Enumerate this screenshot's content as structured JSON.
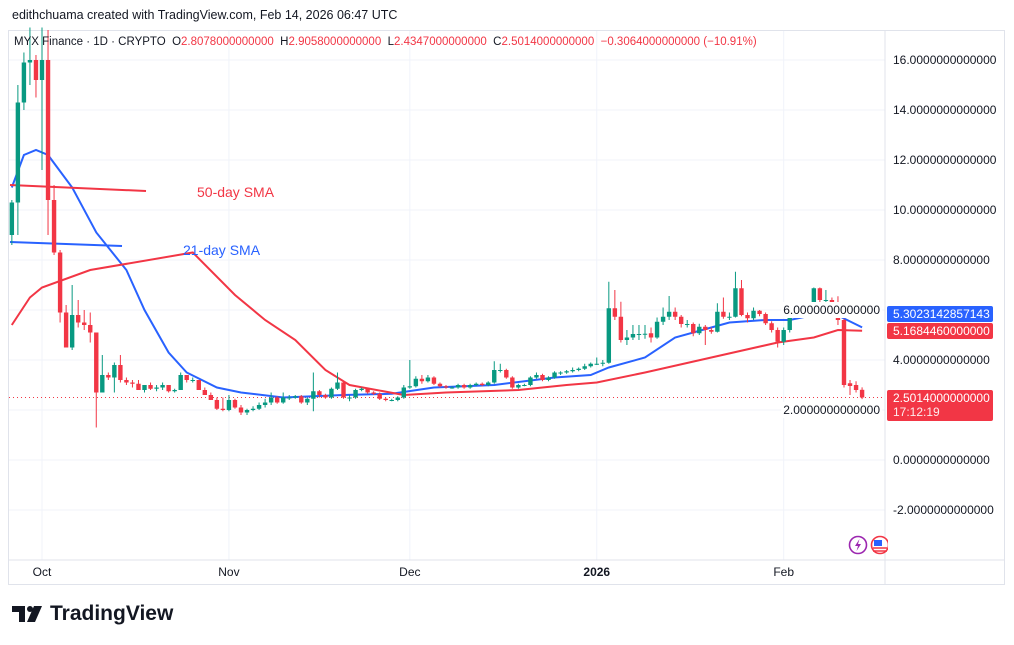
{
  "credit": "edithchuama created with TradingView.com, Feb 14, 2026 06:47 UTC",
  "legend": {
    "symbol": "MYX Finance · 1D · CRYPTO",
    "o_label": "O",
    "o": "2.8078000000000",
    "h_label": "H",
    "h": "2.9058000000000",
    "l_label": "L",
    "l": "2.4347000000000",
    "c_label": "C",
    "c": "2.5014000000000",
    "change": "−0.3064000000000 (−10.91%)"
  },
  "annotations": {
    "sma50": "50-day SMA",
    "sma21": "21-day SMA"
  },
  "badges": {
    "sma21_value": "5.3023142857143",
    "sma50_value": "5.1684460000000",
    "last_price": "2.5014000000000",
    "countdown": "17:12:19"
  },
  "logo_text": "TradingView",
  "colors": {
    "up": "#089981",
    "down": "#f23645",
    "sma21": "#2962ff",
    "sma50": "#f23645",
    "grid": "#f0f3fa"
  },
  "chart_data": {
    "type": "candlestick",
    "title": "MYX Finance · 1D · CRYPTO",
    "ylim": [
      -3,
      17
    ],
    "y_ticks": [
      "16.0000000000000",
      "14.0000000000000",
      "12.0000000000000",
      "10.0000000000000",
      "8.0000000000000",
      "6.0000000000000",
      "4.0000000000000",
      "2.0000000000000",
      "0.0000000000000",
      "-2.0000000000000"
    ],
    "y_tick_values": [
      16,
      14,
      12,
      10,
      8,
      6,
      4,
      2,
      0,
      -2
    ],
    "x_ticks": [
      {
        "label": "Oct",
        "date": "2025-10-01"
      },
      {
        "label": "Nov",
        "date": "2025-11-01"
      },
      {
        "label": "Dec",
        "date": "2025-12-01"
      },
      {
        "label": "2026",
        "date": "2026-01-01"
      },
      {
        "label": "Feb",
        "date": "2026-02-01"
      }
    ],
    "grid": true,
    "last_price": 2.5014,
    "candles_columns": [
      "date",
      "open",
      "high",
      "low",
      "close"
    ],
    "candles": [
      [
        "2025-09-26",
        9.0,
        10.4,
        8.6,
        10.3
      ],
      [
        "2025-09-27",
        10.3,
        15.0,
        9.0,
        14.3
      ],
      [
        "2025-09-28",
        14.3,
        16.3,
        14.0,
        15.9
      ],
      [
        "2025-09-29",
        15.9,
        17.3,
        15.0,
        16.0
      ],
      [
        "2025-09-30",
        16.0,
        16.2,
        14.5,
        15.2
      ],
      [
        "2025-10-01",
        15.2,
        17.3,
        11.6,
        16.0
      ],
      [
        "2025-10-02",
        16.0,
        17.2,
        9.0,
        10.4
      ],
      [
        "2025-10-03",
        10.4,
        11.0,
        8.2,
        8.3
      ],
      [
        "2025-10-04",
        8.3,
        8.4,
        5.5,
        5.9
      ],
      [
        "2025-10-05",
        5.9,
        6.2,
        4.5,
        4.5
      ],
      [
        "2025-10-06",
        4.5,
        7.0,
        4.4,
        5.8
      ],
      [
        "2025-10-07",
        5.8,
        6.4,
        5.3,
        5.5
      ],
      [
        "2025-10-08",
        5.5,
        6.0,
        5.2,
        5.4
      ],
      [
        "2025-10-09",
        5.4,
        5.9,
        4.7,
        5.1
      ],
      [
        "2025-10-10",
        5.1,
        5.1,
        1.3,
        2.7
      ],
      [
        "2025-10-11",
        2.7,
        4.2,
        2.7,
        3.4
      ],
      [
        "2025-10-12",
        3.4,
        3.5,
        3.2,
        3.3
      ],
      [
        "2025-10-13",
        3.3,
        3.9,
        2.7,
        3.8
      ],
      [
        "2025-10-14",
        3.8,
        4.2,
        3.1,
        3.2
      ],
      [
        "2025-10-15",
        3.2,
        3.3,
        3.0,
        3.1
      ],
      [
        "2025-10-16",
        3.1,
        3.2,
        2.9,
        3.05
      ],
      [
        "2025-10-17",
        3.05,
        3.2,
        2.8,
        2.8
      ],
      [
        "2025-10-18",
        2.8,
        3.0,
        2.7,
        3.0
      ],
      [
        "2025-10-19",
        3.0,
        3.1,
        2.8,
        2.85
      ],
      [
        "2025-10-20",
        2.85,
        3.0,
        2.75,
        2.9
      ],
      [
        "2025-10-21",
        2.9,
        3.1,
        2.8,
        3.0
      ],
      [
        "2025-10-22",
        3.0,
        3.0,
        2.7,
        2.75
      ],
      [
        "2025-10-23",
        2.75,
        2.85,
        2.7,
        2.8
      ],
      [
        "2025-10-24",
        2.8,
        3.5,
        2.8,
        3.4
      ],
      [
        "2025-10-25",
        3.4,
        3.4,
        3.1,
        3.2
      ],
      [
        "2025-10-26",
        3.2,
        3.3,
        3.1,
        3.2
      ],
      [
        "2025-10-27",
        3.2,
        3.2,
        2.8,
        2.8
      ],
      [
        "2025-10-28",
        2.8,
        2.9,
        2.6,
        2.6
      ],
      [
        "2025-10-29",
        2.6,
        2.7,
        2.4,
        2.4
      ],
      [
        "2025-10-30",
        2.4,
        2.5,
        2.0,
        2.05
      ],
      [
        "2025-10-31",
        2.05,
        2.5,
        1.95,
        2.0
      ],
      [
        "2025-11-01",
        2.0,
        2.6,
        1.95,
        2.4
      ],
      [
        "2025-11-02",
        2.4,
        2.45,
        2.05,
        2.1
      ],
      [
        "2025-11-03",
        2.1,
        2.2,
        1.8,
        1.9
      ],
      [
        "2025-11-04",
        1.9,
        2.05,
        1.8,
        2.0
      ],
      [
        "2025-11-05",
        2.0,
        2.15,
        1.95,
        2.05
      ],
      [
        "2025-11-06",
        2.05,
        2.3,
        2.0,
        2.2
      ],
      [
        "2025-11-07",
        2.2,
        2.45,
        2.1,
        2.3
      ],
      [
        "2025-11-08",
        2.3,
        2.7,
        2.2,
        2.5
      ],
      [
        "2025-11-09",
        2.5,
        2.55,
        2.25,
        2.3
      ],
      [
        "2025-11-10",
        2.3,
        2.7,
        2.25,
        2.5
      ],
      [
        "2025-11-11",
        2.5,
        2.6,
        2.4,
        2.5
      ],
      [
        "2025-11-12",
        2.5,
        2.6,
        2.45,
        2.55
      ],
      [
        "2025-11-13",
        2.55,
        2.6,
        2.25,
        2.3
      ],
      [
        "2025-11-14",
        2.3,
        2.5,
        2.2,
        2.45
      ],
      [
        "2025-11-15",
        2.45,
        3.5,
        1.95,
        2.75
      ],
      [
        "2025-11-16",
        2.75,
        2.8,
        2.5,
        2.6
      ],
      [
        "2025-11-17",
        2.6,
        2.65,
        2.45,
        2.5
      ],
      [
        "2025-11-18",
        2.5,
        2.9,
        2.45,
        2.85
      ],
      [
        "2025-11-19",
        2.85,
        3.5,
        2.8,
        3.1
      ],
      [
        "2025-11-20",
        3.1,
        3.15,
        2.45,
        2.5
      ],
      [
        "2025-11-21",
        2.5,
        2.6,
        2.35,
        2.5
      ],
      [
        "2025-11-22",
        2.5,
        2.85,
        2.45,
        2.8
      ],
      [
        "2025-11-23",
        2.8,
        2.9,
        2.75,
        2.85
      ],
      [
        "2025-11-24",
        2.85,
        2.9,
        2.65,
        2.7
      ],
      [
        "2025-11-25",
        2.7,
        2.75,
        2.6,
        2.65
      ],
      [
        "2025-11-26",
        2.65,
        2.7,
        2.4,
        2.45
      ],
      [
        "2025-11-27",
        2.45,
        2.5,
        2.35,
        2.4
      ],
      [
        "2025-11-28",
        2.4,
        2.45,
        2.35,
        2.4
      ],
      [
        "2025-11-29",
        2.4,
        2.55,
        2.35,
        2.5
      ],
      [
        "2025-11-30",
        2.5,
        3.0,
        2.45,
        2.9
      ],
      [
        "2025-12-01",
        2.9,
        4.0,
        2.85,
        2.95
      ],
      [
        "2025-12-02",
        2.95,
        3.35,
        2.9,
        3.25
      ],
      [
        "2025-12-03",
        3.25,
        3.4,
        3.05,
        3.15
      ],
      [
        "2025-12-04",
        3.15,
        3.4,
        3.1,
        3.3
      ],
      [
        "2025-12-05",
        3.3,
        3.35,
        3.0,
        3.05
      ],
      [
        "2025-12-06",
        3.05,
        3.1,
        2.9,
        2.95
      ],
      [
        "2025-12-07",
        2.95,
        3.0,
        2.85,
        2.9
      ],
      [
        "2025-12-08",
        2.9,
        2.95,
        2.85,
        2.9
      ],
      [
        "2025-12-09",
        2.9,
        3.05,
        2.85,
        3.0
      ],
      [
        "2025-12-10",
        3.0,
        3.05,
        2.85,
        2.9
      ],
      [
        "2025-12-11",
        2.9,
        3.05,
        2.85,
        3.0
      ],
      [
        "2025-12-12",
        3.0,
        3.1,
        2.95,
        3.05
      ],
      [
        "2025-12-13",
        3.05,
        3.1,
        2.95,
        3.0
      ],
      [
        "2025-12-14",
        3.0,
        3.15,
        2.95,
        3.1
      ],
      [
        "2025-12-15",
        3.1,
        3.95,
        3.05,
        3.6
      ],
      [
        "2025-12-16",
        3.6,
        3.85,
        3.5,
        3.6
      ],
      [
        "2025-12-17",
        3.6,
        3.65,
        3.25,
        3.3
      ],
      [
        "2025-12-18",
        3.3,
        3.35,
        2.85,
        2.9
      ],
      [
        "2025-12-19",
        2.9,
        3.05,
        2.85,
        3.0
      ],
      [
        "2025-12-20",
        3.0,
        3.05,
        2.95,
        3.0
      ],
      [
        "2025-12-21",
        3.0,
        3.35,
        2.95,
        3.3
      ],
      [
        "2025-12-22",
        3.3,
        3.5,
        3.25,
        3.4
      ],
      [
        "2025-12-23",
        3.4,
        3.45,
        3.15,
        3.2
      ],
      [
        "2025-12-24",
        3.2,
        3.35,
        3.15,
        3.3
      ],
      [
        "2025-12-25",
        3.3,
        3.55,
        3.25,
        3.5
      ],
      [
        "2025-12-26",
        3.5,
        3.55,
        3.4,
        3.5
      ],
      [
        "2025-12-27",
        3.5,
        3.6,
        3.45,
        3.55
      ],
      [
        "2025-12-28",
        3.55,
        3.7,
        3.5,
        3.6
      ],
      [
        "2025-12-29",
        3.6,
        3.7,
        3.55,
        3.65
      ],
      [
        "2025-12-30",
        3.65,
        3.85,
        3.6,
        3.75
      ],
      [
        "2025-12-31",
        3.75,
        3.9,
        3.7,
        3.85
      ],
      [
        "2026-01-01",
        3.85,
        4.1,
        3.8,
        3.85
      ],
      [
        "2026-01-02",
        3.85,
        4.0,
        3.75,
        3.89
      ],
      [
        "2026-01-03",
        3.89,
        7.13,
        3.85,
        6.07
      ],
      [
        "2026-01-04",
        6.07,
        6.8,
        5.6,
        5.73
      ],
      [
        "2026-01-05",
        5.73,
        6.33,
        4.7,
        4.8
      ],
      [
        "2026-01-06",
        4.8,
        5.2,
        4.6,
        4.9
      ],
      [
        "2026-01-07",
        4.9,
        5.4,
        4.8,
        5.04
      ],
      [
        "2026-01-08",
        5.04,
        5.4,
        4.8,
        5.04
      ],
      [
        "2026-01-09",
        5.04,
        5.4,
        4.85,
        5.05
      ],
      [
        "2026-01-10",
        5.07,
        5.3,
        4.7,
        4.9
      ],
      [
        "2026-01-11",
        4.9,
        5.7,
        4.85,
        5.53
      ],
      [
        "2026-01-12",
        5.53,
        6.1,
        5.4,
        5.73
      ],
      [
        "2026-01-13",
        5.73,
        6.56,
        5.6,
        5.93
      ],
      [
        "2026-01-14",
        5.93,
        6.1,
        5.6,
        5.73
      ],
      [
        "2026-01-15",
        5.73,
        5.8,
        5.3,
        5.44
      ],
      [
        "2026-01-16",
        5.44,
        5.6,
        5.3,
        5.44
      ],
      [
        "2026-01-17",
        5.44,
        5.5,
        4.95,
        5.07
      ],
      [
        "2026-01-18",
        5.07,
        5.45,
        5.0,
        5.33
      ],
      [
        "2026-01-19",
        5.33,
        5.4,
        4.6,
        5.2
      ],
      [
        "2026-01-20",
        5.2,
        5.3,
        5.05,
        5.13
      ],
      [
        "2026-01-21",
        5.13,
        6.27,
        5.1,
        5.93
      ],
      [
        "2026-01-22",
        5.93,
        6.5,
        5.65,
        5.73
      ],
      [
        "2026-01-23",
        5.73,
        5.9,
        5.6,
        5.73
      ],
      [
        "2026-01-24",
        5.73,
        7.53,
        5.7,
        6.87
      ],
      [
        "2026-01-25",
        6.87,
        7.2,
        5.75,
        5.8
      ],
      [
        "2026-01-26",
        5.8,
        5.9,
        5.5,
        5.67
      ],
      [
        "2026-01-27",
        5.67,
        6.1,
        5.6,
        5.97
      ],
      [
        "2026-01-28",
        5.97,
        6.0,
        5.75,
        5.84
      ],
      [
        "2026-01-29",
        5.84,
        5.9,
        5.4,
        5.47
      ],
      [
        "2026-01-30",
        5.47,
        5.55,
        5.1,
        5.2
      ],
      [
        "2026-01-31",
        5.2,
        5.3,
        4.5,
        4.73
      ],
      [
        "2026-02-01",
        4.73,
        5.3,
        4.6,
        5.2
      ],
      [
        "2026-02-02",
        5.2,
        6.1,
        5.1,
        5.93
      ],
      [
        "2026-02-03",
        5.93,
        6.3,
        5.8,
        6.0
      ],
      [
        "2026-02-04",
        6.0,
        6.3,
        5.9,
        6.07
      ],
      [
        "2026-02-05",
        6.07,
        6.2,
        5.75,
        5.84
      ],
      [
        "2026-02-06",
        5.84,
        6.9,
        5.8,
        6.87
      ],
      [
        "2026-02-07",
        6.87,
        6.9,
        6.3,
        6.4
      ],
      [
        "2026-02-08",
        6.4,
        6.8,
        6.2,
        6.4
      ],
      [
        "2026-02-09",
        6.4,
        6.5,
        6.1,
        6.2
      ],
      [
        "2026-02-10",
        6.27,
        6.55,
        5.4,
        5.6
      ],
      [
        "2026-02-11",
        5.6,
        5.65,
        2.9,
        3.0
      ],
      [
        "2026-02-12",
        3.07,
        3.2,
        2.6,
        2.96
      ],
      [
        "2026-02-13",
        3.0,
        3.15,
        2.7,
        2.8
      ],
      [
        "2026-02-14",
        2.8078,
        2.9058,
        2.4347,
        2.5014
      ]
    ],
    "series": [
      {
        "name": "21-day SMA",
        "color": "#2962ff",
        "points": [
          [
            "2025-09-26",
            10.9
          ],
          [
            "2025-09-28",
            12.2
          ],
          [
            "2025-09-30",
            12.4
          ],
          [
            "2025-10-02",
            12.2
          ],
          [
            "2025-10-06",
            10.9
          ],
          [
            "2025-10-10",
            9.1
          ],
          [
            "2025-10-15",
            7.6
          ],
          [
            "2025-10-18",
            6.0
          ],
          [
            "2025-10-22",
            4.3
          ],
          [
            "2025-10-25",
            3.5
          ],
          [
            "2025-10-30",
            2.9
          ],
          [
            "2025-11-03",
            2.7
          ],
          [
            "2025-11-10",
            2.5
          ],
          [
            "2025-11-20",
            2.6
          ],
          [
            "2025-11-28",
            2.65
          ],
          [
            "2025-12-05",
            2.9
          ],
          [
            "2025-12-15",
            3.0
          ],
          [
            "2025-12-25",
            3.3
          ],
          [
            "2025-12-31",
            3.4
          ],
          [
            "2026-01-03",
            3.7
          ],
          [
            "2026-01-09",
            4.1
          ],
          [
            "2026-01-14",
            4.9
          ],
          [
            "2026-01-20",
            5.3
          ],
          [
            "2026-01-23",
            5.5
          ],
          [
            "2026-01-29",
            5.6
          ],
          [
            "2026-02-02",
            5.6
          ],
          [
            "2026-02-06",
            5.8
          ],
          [
            "2026-02-09",
            5.9
          ],
          [
            "2026-02-14",
            5.3023
          ]
        ]
      },
      {
        "name": "50-day SMA",
        "color": "#f23645",
        "points": [
          [
            "2025-09-26",
            5.4
          ],
          [
            "2025-09-29",
            6.5
          ],
          [
            "2025-10-01",
            6.9
          ],
          [
            "2025-10-09",
            7.6
          ],
          [
            "2025-10-26",
            8.3
          ],
          [
            "2025-11-02",
            6.6
          ],
          [
            "2025-11-07",
            5.6
          ],
          [
            "2025-11-12",
            4.8
          ],
          [
            "2025-11-17",
            3.6
          ],
          [
            "2025-11-21",
            3.0
          ],
          [
            "2025-11-30",
            2.6
          ],
          [
            "2025-12-07",
            2.7
          ],
          [
            "2025-12-19",
            2.8
          ],
          [
            "2025-12-27",
            3.0
          ],
          [
            "2026-01-01",
            3.1
          ],
          [
            "2026-01-09",
            3.5
          ],
          [
            "2026-01-20",
            4.1
          ],
          [
            "2026-01-31",
            4.7
          ],
          [
            "2026-02-06",
            4.9
          ],
          [
            "2026-02-10",
            5.2
          ],
          [
            "2026-02-14",
            5.1684
          ]
        ]
      }
    ]
  }
}
